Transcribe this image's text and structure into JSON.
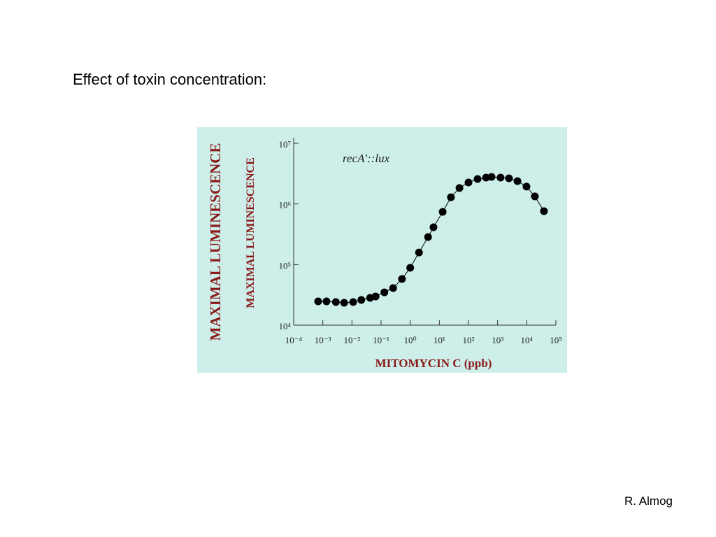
{
  "slide_title": "Effect of toxin concentration:",
  "author": "R. Almog",
  "chart_data": {
    "type": "scatter",
    "annotation": "recA'::lux",
    "x_label": "MITOMYCIN C (ppb)",
    "y_labels": [
      "MAXIMAL LUMINESCENCE",
      "MAXIMAL LUMINESCENCE"
    ],
    "xscale": "log",
    "yscale": "log",
    "xlim": [
      0.0001,
      100000
    ],
    "ylim": [
      10000,
      10000000
    ],
    "xticks": [
      {
        "value": 0.0001,
        "label": "10⁻⁴"
      },
      {
        "value": 0.001,
        "label": "10⁻³"
      },
      {
        "value": 0.01,
        "label": "10⁻²"
      },
      {
        "value": 0.1,
        "label": "10⁻¹"
      },
      {
        "value": 1,
        "label": "10⁰"
      },
      {
        "value": 10,
        "label": "10¹"
      },
      {
        "value": 100,
        "label": "10²"
      },
      {
        "value": 1000,
        "label": "10³"
      },
      {
        "value": 10000,
        "label": "10⁴"
      },
      {
        "value": 100000,
        "label": "10⁵"
      }
    ],
    "yticks": [
      {
        "value": 10000,
        "label": "10⁴"
      },
      {
        "value": 100000,
        "label": "10⁵"
      },
      {
        "value": 1000000,
        "label": "10⁶"
      },
      {
        "value": 10000000,
        "label": "10⁷"
      }
    ],
    "series": [
      {
        "color": "#000000",
        "connected": true,
        "x": [
          0.00069,
          0.00134,
          0.0028,
          0.0054,
          0.011,
          0.021,
          0.042,
          0.065,
          0.13,
          0.26,
          0.52,
          1.0,
          2.0,
          4.1,
          6.3,
          13,
          25,
          49,
          100,
          205,
          400,
          620,
          1260,
          2450,
          4800,
          9800,
          19000,
          39000
        ],
        "values": [
          24700,
          24700,
          24000,
          23400,
          24000,
          26000,
          28200,
          29700,
          34800,
          40900,
          57800,
          88400,
          158000,
          284000,
          412000,
          740000,
          1290000,
          1830000,
          2260000,
          2580000,
          2720000,
          2790000,
          2720000,
          2650000,
          2380000,
          1930000,
          1330000,
          760000
        ]
      }
    ]
  }
}
